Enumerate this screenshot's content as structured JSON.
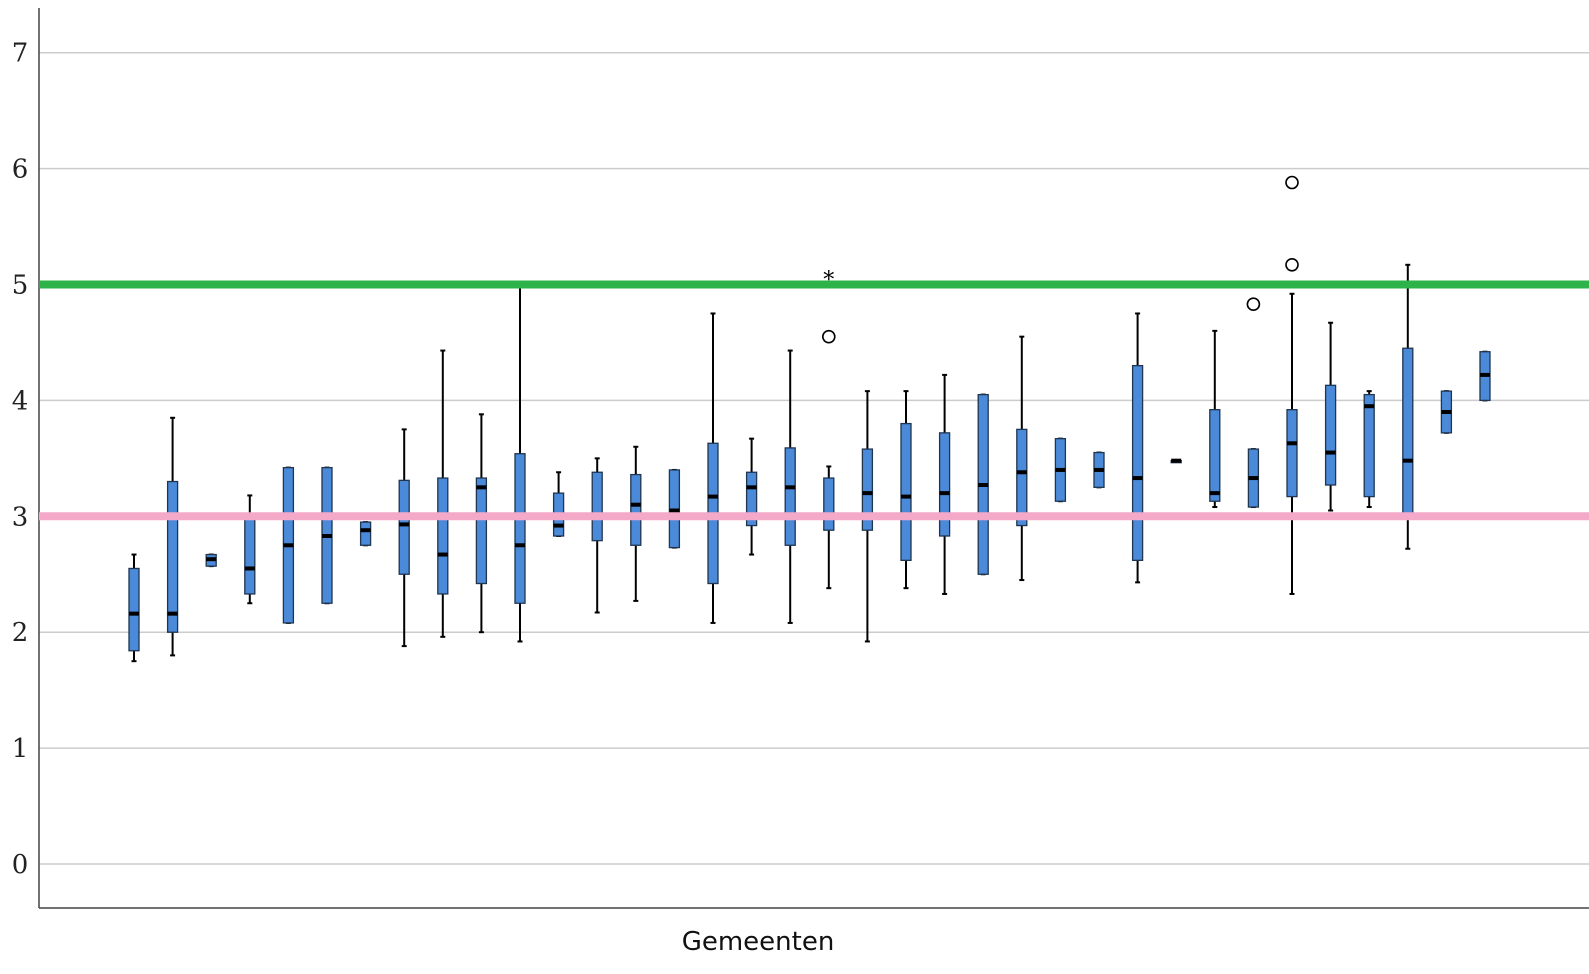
{
  "chart_data": {
    "type": "boxplot",
    "xlabel": "Gemeenten",
    "ylabel": "",
    "ylim": [
      -0.4,
      7.4
    ],
    "yticks": [
      0,
      1,
      2,
      3,
      4,
      5,
      6,
      7
    ],
    "grid": true,
    "reference_lines": [
      {
        "y": 5,
        "color": "#2db34a"
      },
      {
        "y": 3,
        "color": "#f4a9c8"
      }
    ],
    "boxes": [
      {
        "min": 1.75,
        "q1": 1.84,
        "median": 2.16,
        "q3": 2.55,
        "max": 2.67,
        "outliers": []
      },
      {
        "min": 1.8,
        "q1": 2.0,
        "median": 2.16,
        "q3": 3.3,
        "max": 3.85,
        "outliers": []
      },
      {
        "min": 2.57,
        "q1": 2.57,
        "median": 2.63,
        "q3": 2.67,
        "max": 2.67,
        "outliers": []
      },
      {
        "min": 2.25,
        "q1": 2.33,
        "median": 2.55,
        "q3": 3.0,
        "max": 3.18,
        "outliers": []
      },
      {
        "min": 2.08,
        "q1": 2.08,
        "median": 2.75,
        "q3": 3.42,
        "max": 3.42,
        "outliers": []
      },
      {
        "min": 2.25,
        "q1": 2.25,
        "median": 2.83,
        "q3": 3.42,
        "max": 3.42,
        "outliers": []
      },
      {
        "min": 2.75,
        "q1": 2.75,
        "median": 2.88,
        "q3": 2.95,
        "max": 2.95,
        "outliers": []
      },
      {
        "min": 1.88,
        "q1": 2.5,
        "median": 2.93,
        "q3": 3.31,
        "max": 3.75,
        "outliers": []
      },
      {
        "min": 1.96,
        "q1": 2.33,
        "median": 2.67,
        "q3": 3.33,
        "max": 4.43,
        "outliers": []
      },
      {
        "min": 2.0,
        "q1": 2.42,
        "median": 3.25,
        "q3": 3.33,
        "max": 3.88,
        "outliers": []
      },
      {
        "min": 1.92,
        "q1": 2.25,
        "median": 2.75,
        "q3": 3.54,
        "max": 5.0,
        "outliers": []
      },
      {
        "min": 2.83,
        "q1": 2.83,
        "median": 2.92,
        "q3": 3.2,
        "max": 3.38,
        "outliers": []
      },
      {
        "min": 2.17,
        "q1": 2.79,
        "median": 3.0,
        "q3": 3.38,
        "max": 3.5,
        "outliers": []
      },
      {
        "min": 2.27,
        "q1": 2.75,
        "median": 3.1,
        "q3": 3.36,
        "max": 3.6,
        "outliers": []
      },
      {
        "min": 2.73,
        "q1": 2.73,
        "median": 3.05,
        "q3": 3.4,
        "max": 3.4,
        "outliers": []
      },
      {
        "min": 2.08,
        "q1": 2.42,
        "median": 3.17,
        "q3": 3.63,
        "max": 4.75,
        "outliers": []
      },
      {
        "min": 2.67,
        "q1": 2.92,
        "median": 3.25,
        "q3": 3.38,
        "max": 3.67,
        "outliers": []
      },
      {
        "min": 2.08,
        "q1": 2.75,
        "median": 3.25,
        "q3": 3.59,
        "max": 4.43,
        "outliers": []
      },
      {
        "min": 2.38,
        "q1": 2.88,
        "median": 3.0,
        "q3": 3.33,
        "max": 3.43,
        "outliers": [
          {
            "value": 4.55,
            "symbol": "circle"
          },
          {
            "value": 5.08,
            "symbol": "star"
          }
        ]
      },
      {
        "min": 1.92,
        "q1": 2.88,
        "median": 3.2,
        "q3": 3.58,
        "max": 4.08,
        "outliers": []
      },
      {
        "min": 2.38,
        "q1": 2.62,
        "median": 3.17,
        "q3": 3.8,
        "max": 4.08,
        "outliers": []
      },
      {
        "min": 2.33,
        "q1": 2.83,
        "median": 3.2,
        "q3": 3.72,
        "max": 4.22,
        "outliers": []
      },
      {
        "min": 2.5,
        "q1": 2.5,
        "median": 3.27,
        "q3": 4.05,
        "max": 4.05,
        "outliers": []
      },
      {
        "min": 2.45,
        "q1": 2.92,
        "median": 3.38,
        "q3": 3.75,
        "max": 4.55,
        "outliers": []
      },
      {
        "min": 3.13,
        "q1": 3.13,
        "median": 3.4,
        "q3": 3.67,
        "max": 3.67,
        "outliers": []
      },
      {
        "min": 3.25,
        "q1": 3.25,
        "median": 3.4,
        "q3": 3.55,
        "max": 3.55,
        "outliers": []
      },
      {
        "min": 2.43,
        "q1": 2.62,
        "median": 3.33,
        "q3": 4.3,
        "max": 4.75,
        "outliers": []
      },
      {
        "min": 3.48,
        "q1": 3.48,
        "median": 3.48,
        "q3": 3.48,
        "max": 3.48,
        "outliers": []
      },
      {
        "min": 3.08,
        "q1": 3.13,
        "median": 3.2,
        "q3": 3.92,
        "max": 4.6,
        "outliers": []
      },
      {
        "min": 3.08,
        "q1": 3.08,
        "median": 3.33,
        "q3": 3.58,
        "max": 3.58,
        "outliers": [
          {
            "value": 4.83,
            "symbol": "circle"
          }
        ]
      },
      {
        "min": 2.33,
        "q1": 3.17,
        "median": 3.63,
        "q3": 3.92,
        "max": 4.92,
        "outliers": [
          {
            "value": 5.17,
            "symbol": "circle"
          },
          {
            "value": 5.88,
            "symbol": "circle"
          }
        ]
      },
      {
        "min": 3.05,
        "q1": 3.27,
        "median": 3.55,
        "q3": 4.13,
        "max": 4.67,
        "outliers": []
      },
      {
        "min": 3.08,
        "q1": 3.17,
        "median": 3.95,
        "q3": 4.05,
        "max": 4.08,
        "outliers": []
      },
      {
        "min": 2.72,
        "q1": 3.0,
        "median": 3.48,
        "q3": 4.45,
        "max": 5.17,
        "outliers": []
      },
      {
        "min": 3.72,
        "q1": 3.72,
        "median": 3.9,
        "q3": 4.08,
        "max": 4.08,
        "outliers": []
      },
      {
        "min": 4.0,
        "q1": 4.0,
        "median": 4.22,
        "q3": 4.42,
        "max": 4.42,
        "outliers": []
      }
    ]
  },
  "colors": {
    "box_fill": "#4a8ad8",
    "box_stroke": "#1f3550",
    "grid": "#cccccc",
    "axis": "#444444"
  }
}
